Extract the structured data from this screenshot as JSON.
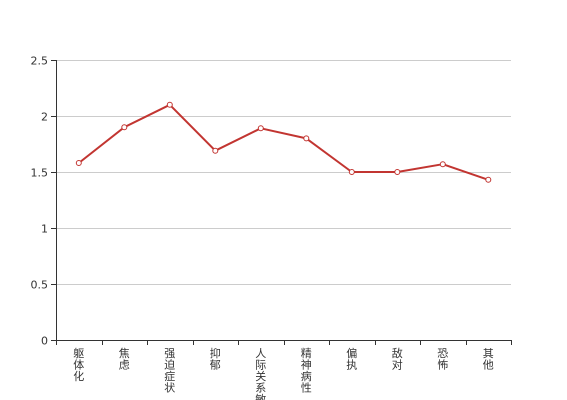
{
  "chart_data": {
    "type": "line",
    "categories": [
      [
        "躯",
        "体",
        "化"
      ],
      [
        "焦",
        "虑"
      ],
      [
        "强",
        "迫",
        "症",
        "状"
      ],
      [
        "抑",
        "郁"
      ],
      [
        "人",
        "际",
        "关",
        "系",
        "敏"
      ],
      [
        "精",
        "神",
        "病",
        "性"
      ],
      [
        "偏",
        "执"
      ],
      [
        "敌",
        "对"
      ],
      [
        "恐",
        "怖"
      ],
      [
        "其",
        "他"
      ]
    ],
    "series": [
      {
        "values": [
          1.58,
          1.9,
          2.1,
          1.69,
          1.89,
          1.8,
          1.5,
          1.5,
          1.57,
          1.43
        ]
      }
    ],
    "ylim": [
      0,
      2.5
    ],
    "yticks": [
      "0",
      "0.5",
      "1",
      "1.5",
      "2",
      "2.5"
    ],
    "grid": true,
    "colors": {
      "line": "#c23531",
      "point_fill": "#ffffff",
      "grid": "#cccccc",
      "axis": "#333333"
    }
  }
}
